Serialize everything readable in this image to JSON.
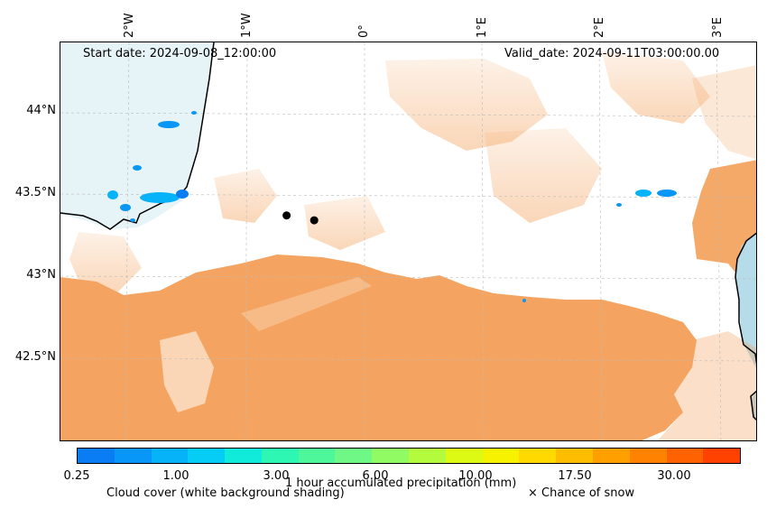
{
  "map": {
    "start_date": "Start date: 2024-09-08_12:00:00",
    "valid_date": "Valid_date: 2024-09-11T03:00:00.00",
    "lon_labels": [
      "2°W",
      "1°W",
      "0°",
      "1°E",
      "2°E",
      "3°E"
    ],
    "lat_labels": [
      "44°N",
      "43.5°N",
      "43°N",
      "42.5°N"
    ],
    "extent": {
      "lon_min": -2.5,
      "lon_max": 3.3,
      "lat_min": 42.0,
      "lat_max": 44.45
    },
    "locations": [
      {
        "name": "",
        "lon": -0.62,
        "lat": 43.39
      },
      {
        "name": "",
        "lon": -0.39,
        "lat": 43.36
      }
    ]
  },
  "legend": {
    "precip_label": "1 hour accumulated precipitation (mm)",
    "cloud_label": "Cloud cover (white background shading)",
    "snow_label": "× Chance of snow",
    "ticks": [
      "0.25",
      "1.00",
      "3.00",
      "6.00",
      "10.00",
      "17.50",
      "30.00"
    ],
    "colors": [
      "#0a7cf4",
      "#0897f6",
      "#06b3f8",
      "#05cdf6",
      "#10ecd9",
      "#2ef7b4",
      "#4ef79a",
      "#6ff885",
      "#91fb64",
      "#b5fb3d",
      "#dcfa14",
      "#f7f300",
      "#ffd900",
      "#ffbd00",
      "#ffa000",
      "#ff8200",
      "#ff6200",
      "#ff4200"
    ],
    "cloud_color": "#f4a460",
    "sea_color": "#add8e6"
  }
}
